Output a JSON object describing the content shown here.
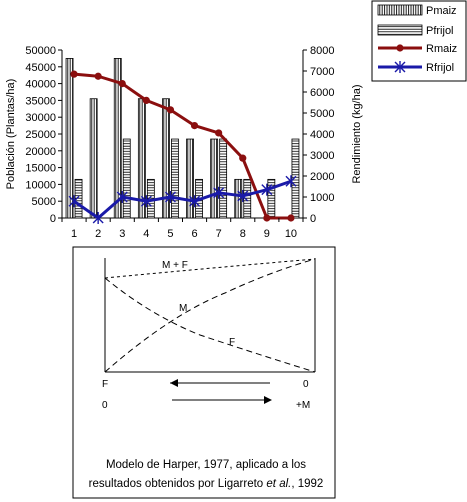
{
  "chart_data": [
    {
      "type": "bar",
      "categories": [
        "1",
        "2",
        "3",
        "4",
        "5",
        "6",
        "7",
        "8",
        "9",
        "10"
      ],
      "ylabel": "Población (Plantas/ha)",
      "y2label": "Rendimiento (kg/ha)",
      "ylim": [
        0,
        50000
      ],
      "y2lim": [
        0,
        8000
      ],
      "yticks": [
        "0",
        "5000",
        "10000",
        "15000",
        "20000",
        "25000",
        "30000",
        "35000",
        "40000",
        "45000",
        "50000"
      ],
      "y2ticks": [
        "0",
        "1000",
        "2000",
        "3000",
        "4000",
        "5000",
        "6000",
        "7000",
        "8000"
      ],
      "legend_position": "top-right",
      "series": [
        {
          "name": "Pmaiz",
          "kind": "bar",
          "pattern": "vertical-stripes",
          "axis": "left",
          "values": [
            47500,
            35500,
            47500,
            35500,
            35500,
            23500,
            23500,
            11500,
            0,
            0
          ]
        },
        {
          "name": "Pfrijol",
          "kind": "bar",
          "pattern": "horizontal-stripes",
          "axis": "left",
          "values": [
            11500,
            0,
            23500,
            11500,
            23500,
            11500,
            23500,
            11500,
            11500,
            23500
          ]
        },
        {
          "name": "Rmaiz",
          "kind": "line",
          "color": "#8b0f0f",
          "marker": "circle",
          "axis": "right",
          "values": [
            6850,
            6750,
            6400,
            5600,
            5150,
            4400,
            4050,
            2850,
            0,
            0
          ]
        },
        {
          "name": "Rfrijol",
          "kind": "line",
          "color": "#1a1aa8",
          "marker": "star",
          "axis": "right",
          "values": [
            800,
            0,
            1000,
            800,
            1000,
            800,
            1200,
            1050,
            1350,
            1750
          ]
        }
      ]
    },
    {
      "type": "diagram",
      "curves": [
        {
          "label": "M + F"
        },
        {
          "label": "M"
        },
        {
          "label": "F"
        }
      ],
      "bottom_left_top": "F",
      "bottom_right_top": "0",
      "bottom_left_bottom": "0",
      "bottom_right_bottom": "+M",
      "caption_line1": "Modelo de Harper, 1977, aplicado a los",
      "caption_line2_pre": "resultados obtenidos por Ligarreto ",
      "caption_line2_em": "et al.",
      "caption_line2_post": ", 1992"
    }
  ]
}
